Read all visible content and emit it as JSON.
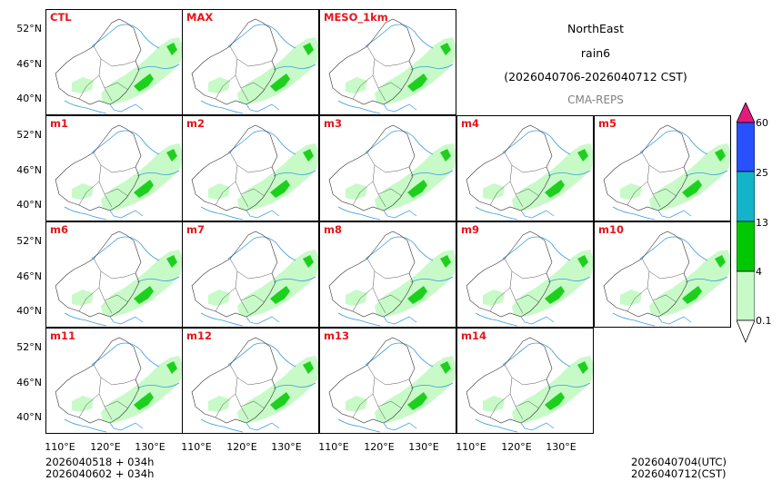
{
  "title": {
    "region": "NorthEast",
    "variable": "rain6",
    "period": "(2026040706-2026040712 CST)",
    "source": "CMA-REPS"
  },
  "panels": [
    "CTL",
    "MAX",
    "MESO_1km",
    "m1",
    "m2",
    "m3",
    "m4",
    "m5",
    "m6",
    "m7",
    "m8",
    "m9",
    "m10",
    "m11",
    "m12",
    "m13",
    "m14"
  ],
  "lat_labels": [
    "52°N",
    "46°N",
    "40°N"
  ],
  "lon_labels": [
    "110°E",
    "120°E",
    "130°E"
  ],
  "colorbar": {
    "levels": [
      "0.1",
      "4",
      "13",
      "25",
      "60"
    ],
    "colors": [
      "#c8fac8",
      "#00c800",
      "#14b4c8",
      "#2850ff",
      "#e6197d"
    ]
  },
  "footer": {
    "init_line1": "2026040518  +  034h",
    "init_line2": "2026040602  +  034h",
    "valid_utc": "2026040704(UTC)",
    "valid_cst": "2026040712(CST)"
  }
}
